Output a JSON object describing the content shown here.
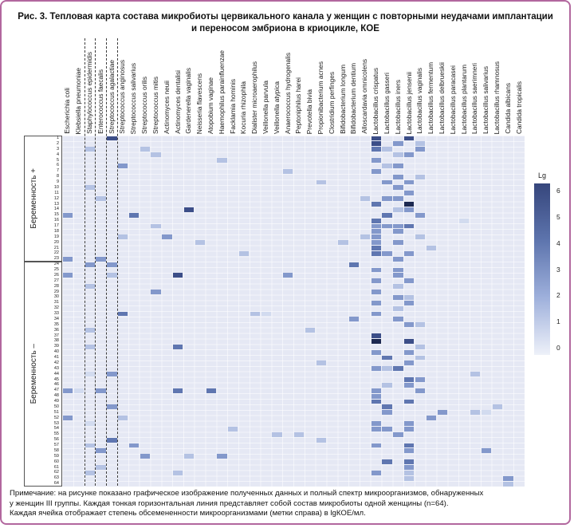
{
  "title_lines": [
    "Рис. 3. Тепловая карта состава микробиоты цервикального канала у женщин с повторными неудачами имплантации",
    "и переносом эмбриона в криоцикле, КОЕ"
  ],
  "note_lines": [
    "Примечание: на рисунке показано графическое изображение полученных данных и полный спектр микроорганизмов, обнаруженных",
    "у женщин III группы. Каждая тонкая горизонтальная линия представляет собой состав микробиоты одной женщины (n=64).",
    "Каждая ячейка отображает степень обсемененности микроорганизмами (метки справа) в lgКОЕ/мл."
  ],
  "chart_data": {
    "type": "heatmap",
    "title": "Тепловая карта состава микробиоты цервикального канала, КОЕ",
    "columns": [
      "Escherichia coli",
      "Klebsiella pneumoniae",
      "Staphylococcus epidermidis",
      "Enterococcus faecalis",
      "Streptococcus agalactiae",
      "Streptococcus anginosus",
      "Streptococcus salivarius",
      "Streptococcus orilis",
      "Streptococcus mitis",
      "Actinomyces neuii",
      "Actinomyces dentalisi",
      "Gardenerella vaginalis",
      "Neisseria flavescens",
      "Atopobium vaginae",
      "Haemophilus parainfluenzae",
      "Facklamia hominis",
      "Kocuria rhizophila",
      "Dialister microaerophilus",
      "Veillonella parvula",
      "Veillonella atypica",
      "Anaerococcus hydrogenalis",
      "Peptoniphilus harei",
      "Prevotella bivia",
      "Propionibacterium acnes",
      "Clostridium perfinges",
      "Bifidobacterium longum",
      "Bifidobacterium dentium",
      "Alloscardavia omnicolens",
      "Lactobacillus crispatus",
      "Lactobacillus gasseri",
      "Lactobacillus iners",
      "Lactobacillus jensenii",
      "Lactobacillus vaginalis",
      "Lactobacillus fermentum",
      "Lactobacillus delbrueskii",
      "Lactobacillus paracasei",
      "Lactobacillus plantarum",
      "Lactobacillus saerimneri",
      "Lactobacillus salivarius",
      "Lactobacillus rhamnosus",
      "Candida albicans",
      "Candida tropicalis"
    ],
    "dashed_column_boundaries": [
      2,
      3,
      4,
      5
    ],
    "n_rows": 64,
    "row_numbers_range": [
      1,
      64
    ],
    "row_groups": [
      {
        "label": "Беременность +",
        "rows": [
          1,
          23
        ]
      },
      {
        "label": "Беременность –",
        "rows": [
          24,
          64
        ]
      }
    ],
    "colorbar": {
      "label": "Lg",
      "ticks": [
        6,
        5,
        4,
        3,
        2,
        1,
        0
      ],
      "min": 0,
      "max": 6,
      "units": "lgКОЕ/мл",
      "color_max": "#36467c",
      "color_min": "#eef1f9"
    },
    "background_color": "#e5e8f4",
    "value_colors": {
      "1": "#d2dbef",
      "2": "#b4c2e3",
      "3": "#8398cb",
      "4": "#5f76b0",
      "5": "#3c4e88",
      "6": "#1d2951"
    },
    "cells": [
      [
        1,
        5,
        5
      ],
      [
        1,
        29,
        5
      ],
      [
        1,
        32,
        5
      ],
      [
        2,
        29,
        5
      ],
      [
        2,
        31,
        3
      ],
      [
        2,
        33,
        2
      ],
      [
        3,
        3,
        2
      ],
      [
        3,
        8,
        2
      ],
      [
        3,
        29,
        4
      ],
      [
        3,
        30,
        2
      ],
      [
        3,
        33,
        3
      ],
      [
        4,
        9,
        2
      ],
      [
        4,
        31,
        2
      ],
      [
        4,
        32,
        3
      ],
      [
        5,
        15,
        2
      ],
      [
        5,
        29,
        3
      ],
      [
        6,
        6,
        3
      ],
      [
        6,
        30,
        2
      ],
      [
        6,
        31,
        3
      ],
      [
        7,
        21,
        2
      ],
      [
        7,
        29,
        3
      ],
      [
        8,
        31,
        3
      ],
      [
        8,
        33,
        2
      ],
      [
        9,
        24,
        2
      ],
      [
        9,
        30,
        3
      ],
      [
        9,
        32,
        3
      ],
      [
        10,
        3,
        2
      ],
      [
        10,
        31,
        3
      ],
      [
        11,
        32,
        3
      ],
      [
        12,
        4,
        2
      ],
      [
        12,
        28,
        2
      ],
      [
        12,
        30,
        3
      ],
      [
        12,
        31,
        3
      ],
      [
        13,
        29,
        4
      ],
      [
        13,
        32,
        6
      ],
      [
        14,
        12,
        5
      ],
      [
        14,
        31,
        2
      ],
      [
        14,
        32,
        3
      ],
      [
        15,
        1,
        3
      ],
      [
        15,
        7,
        4
      ],
      [
        15,
        30,
        4
      ],
      [
        15,
        33,
        3
      ],
      [
        16,
        29,
        4
      ],
      [
        16,
        37,
        1
      ],
      [
        17,
        9,
        2
      ],
      [
        17,
        29,
        3
      ],
      [
        17,
        30,
        3
      ],
      [
        17,
        31,
        3
      ],
      [
        17,
        32,
        4
      ],
      [
        18,
        29,
        3
      ],
      [
        18,
        31,
        3
      ],
      [
        19,
        6,
        2
      ],
      [
        19,
        10,
        3
      ],
      [
        19,
        28,
        2
      ],
      [
        19,
        29,
        3
      ],
      [
        19,
        33,
        2
      ],
      [
        20,
        13,
        2
      ],
      [
        20,
        26,
        2
      ],
      [
        20,
        29,
        3
      ],
      [
        20,
        31,
        3
      ],
      [
        21,
        29,
        4
      ],
      [
        21,
        34,
        2
      ],
      [
        22,
        17,
        2
      ],
      [
        22,
        29,
        4
      ],
      [
        22,
        30,
        3
      ],
      [
        22,
        32,
        3
      ],
      [
        23,
        1,
        3
      ],
      [
        23,
        4,
        3
      ],
      [
        23,
        31,
        3
      ],
      [
        24,
        3,
        3
      ],
      [
        24,
        5,
        3
      ],
      [
        24,
        27,
        4
      ],
      [
        25,
        29,
        3
      ],
      [
        25,
        31,
        3
      ],
      [
        26,
        1,
        3
      ],
      [
        26,
        5,
        2
      ],
      [
        26,
        11,
        5
      ],
      [
        26,
        21,
        3
      ],
      [
        26,
        31,
        3
      ],
      [
        27,
        29,
        3
      ],
      [
        27,
        32,
        3
      ],
      [
        28,
        3,
        2
      ],
      [
        28,
        31,
        2
      ],
      [
        29,
        9,
        3
      ],
      [
        29,
        29,
        3
      ],
      [
        30,
        31,
        3
      ],
      [
        30,
        32,
        2
      ],
      [
        31,
        29,
        3
      ],
      [
        31,
        32,
        3
      ],
      [
        32,
        31,
        2
      ],
      [
        33,
        6,
        4
      ],
      [
        33,
        18,
        2
      ],
      [
        33,
        19,
        1
      ],
      [
        33,
        29,
        3
      ],
      [
        34,
        27,
        3
      ],
      [
        34,
        31,
        3
      ],
      [
        35,
        32,
        3
      ],
      [
        35,
        33,
        2
      ],
      [
        36,
        3,
        2
      ],
      [
        36,
        23,
        2
      ],
      [
        37,
        29,
        5
      ],
      [
        38,
        29,
        6
      ],
      [
        38,
        32,
        5
      ],
      [
        39,
        3,
        2
      ],
      [
        39,
        11,
        4
      ],
      [
        39,
        33,
        2
      ],
      [
        40,
        29,
        3
      ],
      [
        40,
        32,
        3
      ],
      [
        41,
        30,
        4
      ],
      [
        41,
        33,
        2
      ],
      [
        42,
        24,
        2
      ],
      [
        42,
        32,
        3
      ],
      [
        43,
        29,
        3
      ],
      [
        43,
        30,
        2
      ],
      [
        43,
        31,
        4
      ],
      [
        44,
        3,
        1
      ],
      [
        44,
        5,
        3
      ],
      [
        44,
        38,
        2
      ],
      [
        45,
        32,
        4
      ],
      [
        45,
        33,
        3
      ],
      [
        46,
        30,
        2
      ],
      [
        46,
        32,
        3
      ],
      [
        47,
        1,
        3
      ],
      [
        47,
        2,
        1
      ],
      [
        47,
        4,
        3
      ],
      [
        47,
        11,
        4
      ],
      [
        47,
        14,
        4
      ],
      [
        47,
        29,
        3
      ],
      [
        47,
        33,
        3
      ],
      [
        48,
        29,
        3
      ],
      [
        49,
        29,
        4
      ],
      [
        49,
        32,
        4
      ],
      [
        50,
        5,
        3
      ],
      [
        50,
        30,
        4
      ],
      [
        50,
        40,
        2
      ],
      [
        51,
        30,
        3
      ],
      [
        51,
        35,
        3
      ],
      [
        51,
        38,
        2
      ],
      [
        51,
        39,
        1
      ],
      [
        52,
        1,
        3
      ],
      [
        52,
        6,
        2
      ],
      [
        52,
        34,
        3
      ],
      [
        53,
        3,
        1
      ],
      [
        53,
        29,
        3
      ],
      [
        53,
        32,
        3
      ],
      [
        54,
        16,
        2
      ],
      [
        54,
        29,
        3
      ],
      [
        54,
        30,
        3
      ],
      [
        54,
        32,
        3
      ],
      [
        55,
        20,
        2
      ],
      [
        55,
        22,
        2
      ],
      [
        55,
        31,
        3
      ],
      [
        56,
        5,
        4
      ],
      [
        56,
        24,
        2
      ],
      [
        57,
        3,
        2
      ],
      [
        57,
        7,
        3
      ],
      [
        57,
        29,
        3
      ],
      [
        57,
        32,
        4
      ],
      [
        58,
        4,
        3
      ],
      [
        58,
        32,
        3
      ],
      [
        58,
        39,
        3
      ],
      [
        59,
        8,
        3
      ],
      [
        59,
        12,
        2
      ],
      [
        59,
        15,
        3
      ],
      [
        60,
        30,
        4
      ],
      [
        60,
        32,
        4
      ],
      [
        61,
        4,
        2
      ],
      [
        61,
        32,
        3
      ],
      [
        62,
        3,
        2
      ],
      [
        62,
        11,
        2
      ],
      [
        62,
        29,
        3
      ],
      [
        62,
        32,
        2
      ],
      [
        63,
        32,
        2
      ],
      [
        63,
        41,
        3
      ],
      [
        64,
        41,
        2
      ]
    ]
  }
}
